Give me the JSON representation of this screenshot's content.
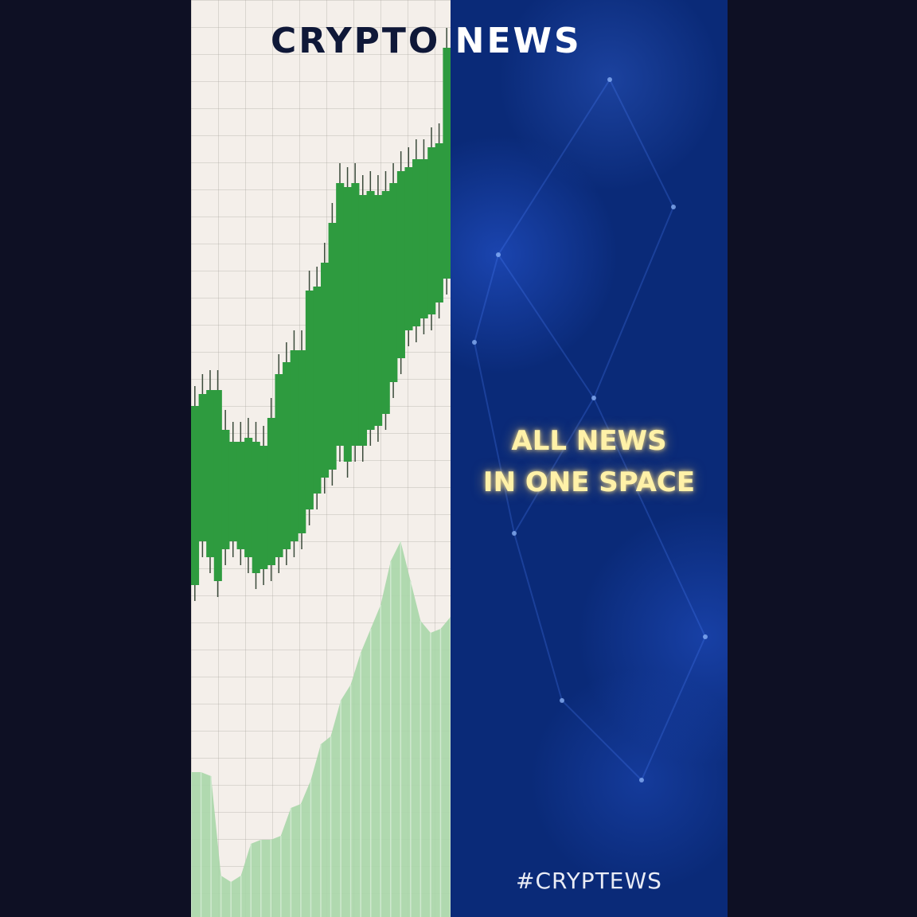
{
  "header": {
    "title_part1": "CRYPTO",
    "title_part2": "NEWS"
  },
  "tagline": {
    "line1": "ALL NEWS",
    "line2": "IN ONE SPACE"
  },
  "footer": {
    "hashtag": "#CRYPTEWS"
  },
  "colors": {
    "background": "#0e1024",
    "chart_background": "#f4efea",
    "candle_green": "#2e9b3f",
    "volume_green": "#a8d6a8",
    "blue_panel": "#0a2a78",
    "tagline_glow": "#fff1a8"
  }
}
